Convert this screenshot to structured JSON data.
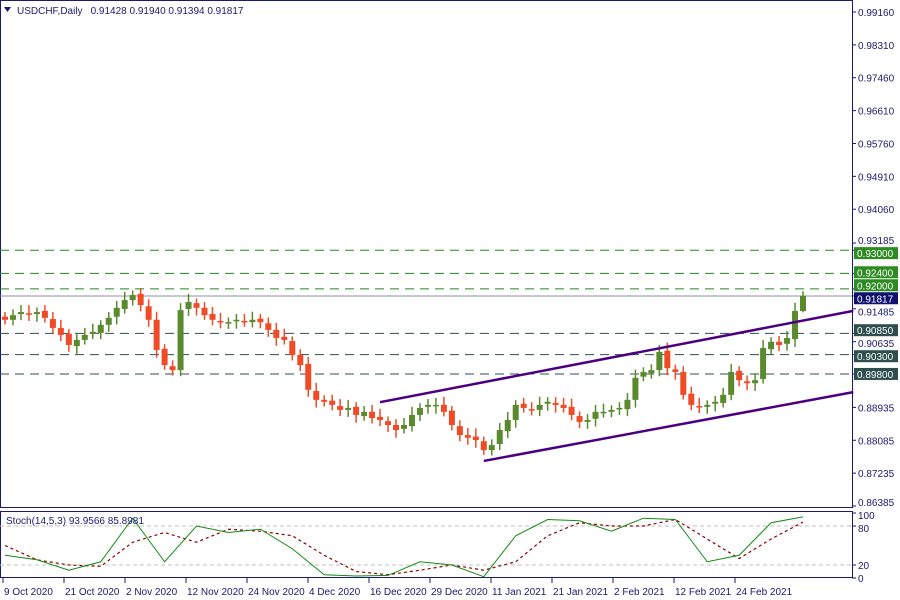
{
  "header": {
    "symbol_timeframe": "USDCHF,Daily",
    "ohlc": "0.91428 0.91940 0.91394 0.91817"
  },
  "colors": {
    "bull": "#5b8a2e",
    "bear": "#ef4b26",
    "channel": "#4b0082",
    "level_green": "#1e8a1e",
    "level_dark": "#2f4f4f",
    "axis": "#1a1a6e",
    "stoch_k": "#138a13",
    "stoch_d": "#8b0000"
  },
  "price_axis": {
    "range": [
      0.86385,
      0.9916
    ],
    "ticks": [
      "0.99160",
      "0.98310",
      "0.97460",
      "0.96610",
      "0.95760",
      "0.94910",
      "0.94060",
      "0.93185",
      "0.91485",
      "0.90635",
      "0.88935",
      "0.88085",
      "0.87235",
      "0.86385"
    ]
  },
  "levels": [
    {
      "label": "0.93000",
      "price": 0.93,
      "kind": "green"
    },
    {
      "label": "0.92400",
      "price": 0.924,
      "kind": "green"
    },
    {
      "label": "0.92000",
      "price": 0.92,
      "kind": "green"
    },
    {
      "label": "0.90850",
      "price": 0.9085,
      "kind": "dark"
    },
    {
      "label": "0.90300",
      "price": 0.903,
      "kind": "dark"
    },
    {
      "label": "0.89800",
      "price": 0.898,
      "kind": "dark"
    }
  ],
  "current_price": {
    "label": "0.91817",
    "price": 0.91817
  },
  "channel": {
    "upper": [
      {
        "i": 47,
        "price": 0.8907
      },
      {
        "i": 106.3,
        "price": 0.9143
      }
    ],
    "lower": [
      {
        "i": 60,
        "price": 0.8755
      },
      {
        "i": 106.3,
        "price": 0.8933
      }
    ]
  },
  "chart_data": {
    "type": "candlestick",
    "title": "USDCHF,Daily",
    "closes": [
      0.912,
      0.9132,
      0.914,
      0.9135,
      0.914,
      0.9125,
      0.9099,
      0.9081,
      0.9055,
      0.9068,
      0.9081,
      0.9089,
      0.9107,
      0.9125,
      0.9151,
      0.9171,
      0.9184,
      0.9158,
      0.912,
      0.9042,
      0.9003,
      0.899,
      0.9145,
      0.9166,
      0.9151,
      0.9132,
      0.912,
      0.9114,
      0.9114,
      0.912,
      0.9114,
      0.912,
      0.9114,
      0.9094,
      0.9073,
      0.9068,
      0.9029,
      0.9003,
      0.8939,
      0.8913,
      0.8908,
      0.89,
      0.8887,
      0.8892,
      0.8874,
      0.8882,
      0.8866,
      0.8861,
      0.8848,
      0.8835,
      0.8848,
      0.8874,
      0.8892,
      0.89,
      0.89,
      0.8882,
      0.8848,
      0.8822,
      0.8815,
      0.8809,
      0.8783,
      0.8796,
      0.8835,
      0.8861,
      0.89,
      0.8892,
      0.8887,
      0.89,
      0.8908,
      0.89,
      0.8892,
      0.8874,
      0.8856,
      0.8861,
      0.8882,
      0.8882,
      0.8887,
      0.8892,
      0.8913,
      0.897,
      0.8985,
      0.899,
      0.9037,
      0.8995,
      0.8985,
      0.8926,
      0.89,
      0.8895,
      0.89,
      0.8908,
      0.8926,
      0.8985,
      0.8964,
      0.8956,
      0.8964,
      0.9047,
      0.9063,
      0.9055,
      0.9073,
      0.9143,
      0.91817
    ],
    "last_open": 0.91428,
    "last_high": 0.9194,
    "last_low": 0.91394,
    "x_labels": [
      "9 Oct 2020",
      "21 Oct 2020",
      "2 Nov 2020",
      "12 Nov 2020",
      "24 Nov 2020",
      "4 Dec 2020",
      "16 Dec 2020",
      "29 Dec 2020",
      "11 Jan 2021",
      "21 Jan 2021",
      "2 Feb 2021",
      "12 Feb 2021",
      "24 Feb 2021"
    ]
  },
  "stochastic": {
    "label": "Stoch(14,5,3) 93.9566 85.8981",
    "ticks": [
      "100",
      "80",
      "20",
      "0"
    ],
    "sample_step": 4,
    "k": [
      35,
      28,
      12,
      25,
      92,
      25,
      80,
      70,
      75,
      45,
      5,
      3,
      4,
      25,
      20,
      2,
      65,
      90,
      88,
      72,
      92,
      90,
      25,
      35,
      85,
      94
    ],
    "d": [
      50,
      28,
      20,
      18,
      55,
      70,
      55,
      75,
      72,
      65,
      35,
      10,
      5,
      12,
      20,
      12,
      25,
      65,
      85,
      80,
      80,
      90,
      60,
      30,
      60,
      86
    ]
  }
}
